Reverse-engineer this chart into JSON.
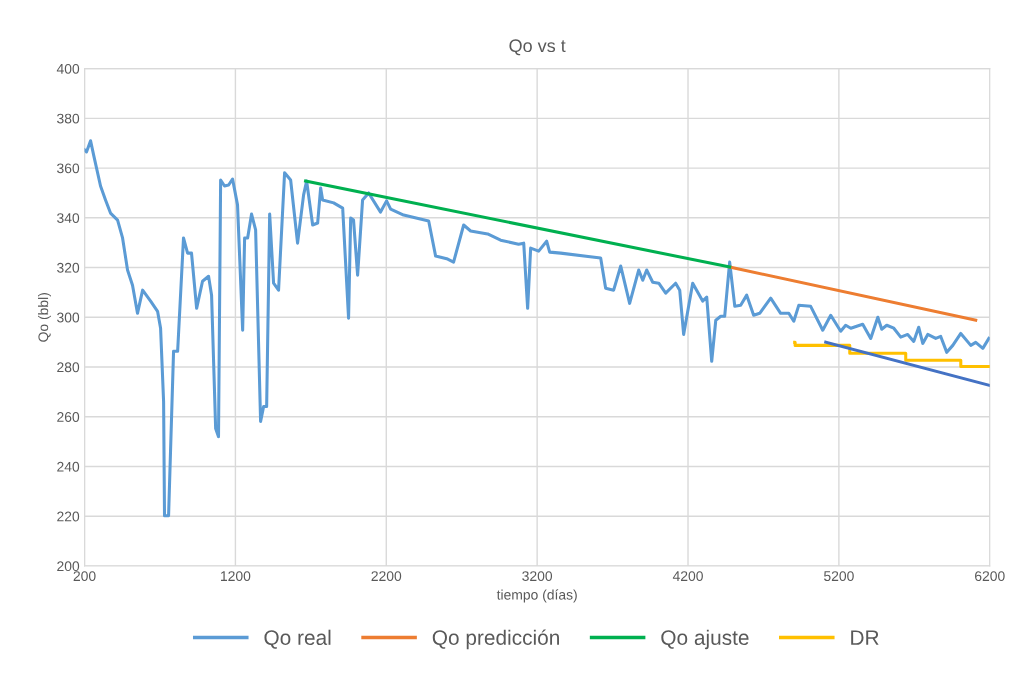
{
  "chart_data": {
    "type": "line",
    "title": "Qo vs t",
    "xlabel": "tiempo (días)",
    "ylabel": "Qo (bbl)",
    "xlim": [
      200,
      6200
    ],
    "xticks": [
      200,
      1200,
      2200,
      3200,
      4200,
      5200,
      6200
    ],
    "ylim": [
      200,
      400
    ],
    "yticks": [
      200,
      220,
      240,
      260,
      280,
      300,
      320,
      340,
      360,
      380,
      400
    ],
    "grid": true,
    "legend": "bottom",
    "marker": "none",
    "line_style": "solid",
    "series": [
      {
        "name": "Qo real",
        "color": "#5b9bd5",
        "x": [
          200,
          213,
          240,
          260,
          306,
          339,
          372,
          419,
          452,
          485,
          518,
          551,
          585,
          638,
          684,
          704,
          724,
          730,
          757,
          790,
          817,
          856,
          883,
          909,
          943,
          982,
          1022,
          1042,
          1069,
          1088,
          1102,
          1128,
          1155,
          1181,
          1214,
          1248,
          1261,
          1281,
          1307,
          1334,
          1367,
          1387,
          1407,
          1427,
          1453,
          1486,
          1526,
          1566,
          1612,
          1652,
          1672,
          1712,
          1745,
          1765,
          1778,
          1851,
          1911,
          1950,
          1964,
          1983,
          2010,
          2043,
          2083,
          2162,
          2202,
          2229,
          2315,
          2481,
          2527,
          2607,
          2646,
          2713,
          2759,
          2872,
          2958,
          3077,
          3111,
          3137,
          3157,
          3210,
          3263,
          3283,
          3356,
          3621,
          3654,
          3707,
          3754,
          3813,
          3873,
          3900,
          3926,
          3966,
          4006,
          4052,
          4118,
          4145,
          4171,
          4231,
          4297,
          4324,
          4357,
          4384,
          4417,
          4443,
          4476,
          4510,
          4549,
          4589,
          4635,
          4675,
          4748,
          4814,
          4868,
          4901,
          4934,
          5013,
          5093,
          5146,
          5212,
          5245,
          5279,
          5358,
          5411,
          5458,
          5484,
          5517,
          5564,
          5610,
          5656,
          5696,
          5729,
          5756,
          5789,
          5842,
          5875,
          5915,
          5955,
          6008,
          6074,
          6107,
          6154,
          6194
        ],
        "values": [
          367.3,
          366.5,
          371,
          365.3,
          352.8,
          347.2,
          341.9,
          339.1,
          331.9,
          319,
          312.9,
          301.6,
          310.9,
          306.5,
          302.4,
          295.6,
          266.1,
          220.2,
          220.2,
          286.3,
          286.3,
          331.9,
          325.8,
          325.8,
          303.6,
          314.5,
          316.5,
          308.9,
          255.3,
          252,
          355.2,
          352.8,
          353.2,
          355.6,
          345.2,
          294.8,
          331.9,
          331.9,
          341.5,
          335.1,
          258.1,
          264.1,
          264.1,
          341.5,
          313.7,
          310.9,
          358.1,
          355.2,
          329.8,
          349.2,
          354.8,
          337.1,
          337.9,
          352,
          347.2,
          346,
          343.9,
          299.6,
          339.9,
          339.1,
          316.9,
          347.2,
          350,
          342.3,
          346.8,
          343.5,
          341.1,
          338.7,
          324.6,
          323.4,
          322.2,
          337.1,
          334.7,
          333.5,
          331,
          329.4,
          329.8,
          303.6,
          327.8,
          326.6,
          330.6,
          326.2,
          325.8,
          323.8,
          311.7,
          310.9,
          320.6,
          305.6,
          319,
          314.9,
          319,
          314.1,
          313.7,
          309.7,
          313.7,
          310.9,
          293.1,
          313.7,
          306.5,
          308.1,
          282.3,
          298.8,
          300.4,
          300.4,
          322.2,
          304.4,
          304.8,
          308.9,
          300.8,
          301.6,
          307.7,
          301.6,
          301.6,
          298.4,
          304.8,
          304.4,
          294.8,
          300.8,
          294.4,
          296.8,
          295.6,
          297.2,
          291.5,
          300,
          295.2,
          296.8,
          295.6,
          292,
          293.1,
          290.3,
          296,
          289.5,
          293.1,
          291.5,
          292.3,
          285.9,
          288.7,
          293.5,
          288.7,
          289.9,
          287.5,
          291.5
        ]
      },
      {
        "name": "Qo predicción",
        "color": "#ed7d31",
        "x": [
          4476,
          6107
        ],
        "values": [
          320.2,
          298.8
        ]
      },
      {
        "name": "Qo ajuste",
        "color": "#00b050",
        "x": [
          1665,
          4476
        ],
        "values": [
          354.8,
          320.2
        ]
      },
      {
        "name": "DR",
        "color": "#ffc000",
        "type": "step",
        "x": [
          4907,
          4910,
          5272,
          5643,
          6008,
          6200
        ],
        "values": [
          289.9,
          288.7,
          285.5,
          282.7,
          280.2,
          280.2
        ]
      },
      {
        "color": "#4472c4",
        "x": [
          5113,
          6200
        ],
        "values": [
          290,
          272.6
        ]
      }
    ]
  }
}
